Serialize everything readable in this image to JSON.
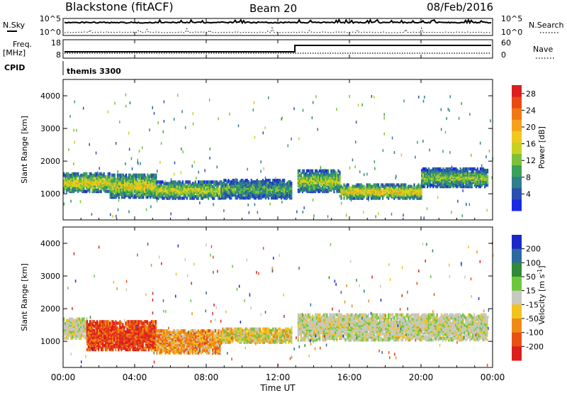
{
  "header": {
    "station": "Blackstone (fitACF)",
    "beam": "Beam 20",
    "date": "08/Feb/2016"
  },
  "noise_panel": {
    "left_label": "N.Sky",
    "right_label": "N.Search",
    "left_ticks": [
      "10^5",
      "10^0"
    ],
    "right_ticks": [
      "10^5",
      "10^0"
    ]
  },
  "freq_panel": {
    "left_label": "Freq.",
    "left_unit": "[MHz]",
    "right_label": "Nave",
    "left_ticks": [
      "18",
      "8"
    ],
    "right_ticks": [
      "60",
      "0"
    ]
  },
  "cpid_panel": {
    "label": "CPID",
    "program": "themis 3300"
  },
  "x_axis": {
    "label": "Time UT",
    "ticks": [
      "00:00",
      "04:00",
      "08:00",
      "12:00",
      "16:00",
      "20:00",
      "00:00"
    ]
  },
  "chart_data": [
    {
      "type": "heatmap",
      "name": "power",
      "ylabel": "Slant Range [km]",
      "yticks": [
        "1000",
        "2000",
        "3000",
        "4000"
      ],
      "ylim": [
        200,
        4500
      ],
      "xlim": [
        0,
        24
      ],
      "colorbar_label": "Power [dB]",
      "colorbar_ticks": [
        "4",
        "8",
        "12",
        "16",
        "20",
        "24",
        "28"
      ],
      "colorbar_range": [
        0,
        30
      ],
      "colors": [
        "#1a28e6",
        "#2a4fb0",
        "#2e7f8c",
        "#3aa05a",
        "#7dc13a",
        "#c8d21e",
        "#f0c81e",
        "#f5a01e",
        "#f07814",
        "#e84a14",
        "#dc1e1e"
      ],
      "bands": [
        {
          "t0": 0.0,
          "t1": 2.6,
          "center": 1350,
          "width": 550,
          "power": 18
        },
        {
          "t0": 2.6,
          "t1": 5.2,
          "center": 1250,
          "width": 700,
          "power": 17
        },
        {
          "t0": 5.2,
          "t1": 8.8,
          "center": 1120,
          "width": 500,
          "power": 16
        },
        {
          "t0": 8.8,
          "t1": 12.8,
          "center": 1150,
          "width": 550,
          "power": 11
        },
        {
          "t0": 13.1,
          "t1": 15.5,
          "center": 1400,
          "width": 650,
          "power": 15
        },
        {
          "t0": 15.5,
          "t1": 20.0,
          "center": 1080,
          "width": 420,
          "power": 19
        },
        {
          "t0": 20.0,
          "t1": 23.7,
          "center": 1500,
          "width": 550,
          "power": 13
        }
      ]
    },
    {
      "type": "heatmap",
      "name": "velocity",
      "ylabel": "Slant Range [km]",
      "yticks": [
        "1000",
        "2000",
        "3000",
        "4000"
      ],
      "ylim": [
        200,
        4500
      ],
      "xlim": [
        0,
        24
      ],
      "colorbar_label": "Velocity [m s^-1]",
      "colorbar_ticks": [
        "200",
        "100",
        "50",
        "15",
        "-15",
        "-50",
        "-100",
        "-200"
      ],
      "colors": [
        "#1a28c8",
        "#2a6aa0",
        "#2f8a3a",
        "#6cc83a",
        "#c8c8c0",
        "#f2c21e",
        "#f08a14",
        "#e85014",
        "#dc1e1e"
      ],
      "bands": [
        {
          "t0": 0.0,
          "t1": 1.3,
          "center": 1400,
          "width": 600,
          "class": "low"
        },
        {
          "t0": 1.3,
          "t1": 5.2,
          "center": 1200,
          "width": 900,
          "class": "neg_strong"
        },
        {
          "t0": 5.2,
          "t1": 8.8,
          "center": 1000,
          "width": 700,
          "class": "neg_mid"
        },
        {
          "t0": 8.8,
          "t1": 12.8,
          "center": 1200,
          "width": 450,
          "class": "neg_weak"
        },
        {
          "t0": 13.1,
          "t1": 23.7,
          "center": 1450,
          "width": 800,
          "class": "low"
        }
      ]
    }
  ]
}
